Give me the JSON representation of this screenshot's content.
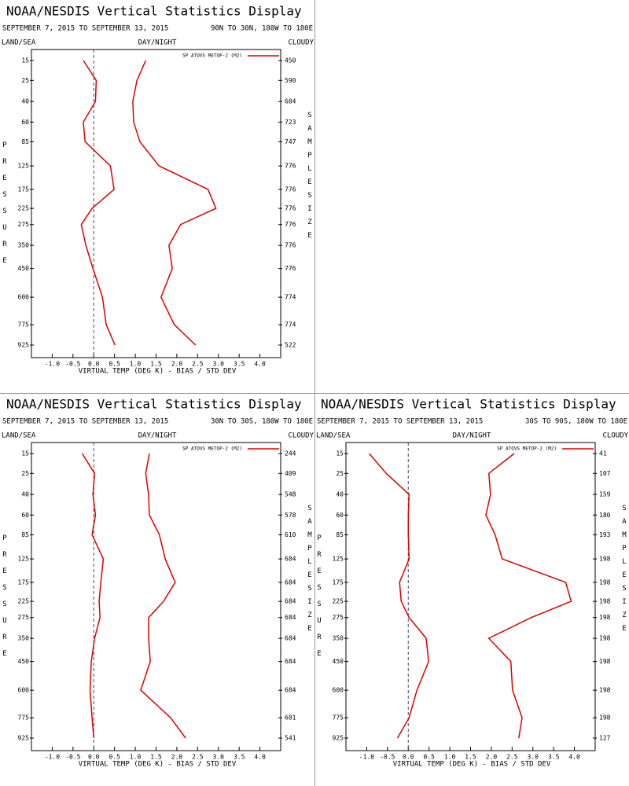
{
  "chart_data": [
    {
      "type": "line",
      "title": "NOAA/NESDIS Vertical Statistics Display",
      "subtitle": "SEPTEMBER 7, 2015 TO SEPTEMBER 13, 2015",
      "region": "90N TO 30N, 180W TO 180E",
      "land_sea": "LAND/SEA",
      "day_night": "DAY/NIGHT",
      "cloud": "CLOUDY",
      "ylabel": "PRESSURE",
      "y2label": "SAMPLE SIZE",
      "xlabel": "VIRTUAL TEMP (DEG K) - BIAS / STD DEV",
      "legend": "SP ATOVS METOP-2 (M2)",
      "color": "#dd0000",
      "y": [
        15,
        25,
        40,
        60,
        85,
        125,
        175,
        225,
        275,
        350,
        450,
        600,
        775,
        925
      ],
      "yscale": "power",
      "yexponent": 0.286,
      "ylim": [
        15,
        925
      ],
      "yticks": [
        15,
        25,
        40,
        60,
        85,
        125,
        175,
        225,
        275,
        350,
        450,
        600,
        775,
        925
      ],
      "xlim": [
        -1.5,
        4.5
      ],
      "xticks": [
        {
          "value": -1,
          "label": "-1.0"
        },
        {
          "value": -0.5,
          "label": "-0.5"
        },
        {
          "value": 0,
          "label": "0.0"
        },
        {
          "value": 0.5,
          "label": "0.5"
        },
        {
          "value": 1,
          "label": "1.0"
        },
        {
          "value": 1.5,
          "label": "1.5"
        },
        {
          "value": 2,
          "label": "2.0"
        },
        {
          "value": 2.5,
          "label": "2.5"
        },
        {
          "value": 3,
          "label": "3.0"
        },
        {
          "value": 3.5,
          "label": "3.5"
        },
        {
          "value": 4,
          "label": "4.0"
        }
      ],
      "vline": 0,
      "sample_size": [
        450,
        590,
        684,
        723,
        747,
        776,
        776,
        776,
        776,
        776,
        776,
        774,
        774,
        522
      ],
      "series": [
        {
          "values": [
            -0.25,
            0.06,
            0.04,
            -0.25,
            -0.21,
            0.4,
            0.49,
            -0.04,
            -0.3,
            -0.19,
            -0.02,
            0.21,
            0.3,
            0.51
          ]
        },
        {
          "values": [
            1.25,
            1.04,
            0.94,
            0.96,
            1.11,
            1.57,
            2.75,
            2.94,
            2.09,
            1.81,
            1.89,
            1.62,
            1.94,
            2.45
          ]
        }
      ]
    },
    {
      "type": "line",
      "title": "NOAA/NESDIS Vertical Statistics Display",
      "subtitle": "SEPTEMBER 7, 2015 TO SEPTEMBER 13, 2015",
      "region": "30N TO 30S, 180W TO 180E",
      "land_sea": "LAND/SEA",
      "day_night": "DAY/NIGHT",
      "cloud": "CLOUDY",
      "ylabel": "PRESSURE",
      "y2label": "SAMPLE SIZE",
      "xlabel": "VIRTUAL TEMP (DEG K) - BIAS / STD DEV",
      "legend": "SP ATOVS METOP-2 (M2)",
      "color": "#dd0000",
      "y": [
        15,
        25,
        40,
        60,
        85,
        125,
        175,
        225,
        275,
        350,
        450,
        600,
        775,
        925
      ],
      "yscale": "power",
      "yexponent": 0.286,
      "ylim": [
        15,
        925
      ],
      "yticks": [
        15,
        25,
        40,
        60,
        85,
        125,
        175,
        225,
        275,
        350,
        450,
        600,
        775,
        925
      ],
      "xlim": [
        -1.5,
        4.5
      ],
      "xticks": [
        {
          "value": -1,
          "label": "-1.0"
        },
        {
          "value": -0.5,
          "label": "-0.5"
        },
        {
          "value": 0,
          "label": "0.0"
        },
        {
          "value": 0.5,
          "label": "0.5"
        },
        {
          "value": 1,
          "label": "1.0"
        },
        {
          "value": 1.5,
          "label": "1.5"
        },
        {
          "value": 2,
          "label": "2.0"
        },
        {
          "value": 2.5,
          "label": "2.5"
        },
        {
          "value": 3,
          "label": "3.0"
        },
        {
          "value": 3.5,
          "label": "3.5"
        },
        {
          "value": 4,
          "label": "4.0"
        }
      ],
      "vline": 0,
      "sample_size": [
        244,
        409,
        548,
        578,
        610,
        684,
        684,
        684,
        684,
        684,
        684,
        684,
        681,
        541
      ],
      "series": [
        {
          "values": [
            -0.28,
            0.02,
            -0.02,
            0.04,
            -0.04,
            0.23,
            0.17,
            0.13,
            0.15,
            0.02,
            -0.06,
            -0.09,
            -0.04,
            0
          ]
        },
        {
          "values": [
            1.34,
            1.25,
            1.32,
            1.34,
            1.58,
            1.72,
            1.96,
            1.68,
            1.32,
            1.32,
            1.36,
            1.13,
            1.85,
            2.21
          ]
        }
      ]
    },
    {
      "type": "line",
      "title": "NOAA/NESDIS Vertical Statistics Display",
      "subtitle": "SEPTEMBER 7, 2015 TO SEPTEMBER 13, 2015",
      "region": "30S TO 90S, 180W TO 180E",
      "land_sea": "LAND/SEA",
      "day_night": "DAY/NIGHT",
      "cloud": "CLOUDY",
      "ylabel": "PRESSURE",
      "y2label": "SAMPLE SIZE",
      "xlabel": "VIRTUAL TEMP (DEG K) - BIAS / STD DEV",
      "legend": "SP ATOVS METOP-2 (M2)",
      "color": "#dd0000",
      "y": [
        15,
        25,
        40,
        60,
        85,
        125,
        175,
        225,
        275,
        350,
        450,
        600,
        775,
        925
      ],
      "yscale": "power",
      "yexponent": 0.286,
      "ylim": [
        15,
        925
      ],
      "yticks": [
        15,
        25,
        40,
        60,
        85,
        125,
        175,
        225,
        275,
        350,
        450,
        600,
        775,
        925
      ],
      "xlim": [
        -1.5,
        4.5
      ],
      "xticks": [
        {
          "value": -1,
          "label": "-1.0"
        },
        {
          "value": -0.5,
          "label": "-0.5"
        },
        {
          "value": 0,
          "label": "0.0"
        },
        {
          "value": 0.5,
          "label": "0.5"
        },
        {
          "value": 1,
          "label": "1.0"
        },
        {
          "value": 1.5,
          "label": "1.5"
        },
        {
          "value": 2,
          "label": "2.0"
        },
        {
          "value": 2.5,
          "label": "2.5"
        },
        {
          "value": 3,
          "label": "3.0"
        },
        {
          "value": 3.5,
          "label": "3.5"
        },
        {
          "value": 4,
          "label": "4.0"
        }
      ],
      "vline": 0,
      "sample_size": [
        41,
        107,
        159,
        180,
        193,
        198,
        198,
        198,
        198,
        198,
        198,
        198,
        198,
        127
      ],
      "series": [
        {
          "values": [
            -0.94,
            -0.53,
            0.02,
            0,
            0,
            0.02,
            -0.21,
            -0.17,
            0.02,
            0.43,
            0.49,
            0.21,
            0.02,
            -0.26
          ]
        },
        {
          "values": [
            2.55,
            1.94,
            1.98,
            1.87,
            2.09,
            2.26,
            3.79,
            3.92,
            2.96,
            1.94,
            2.47,
            2.51,
            2.74,
            2.66
          ]
        }
      ]
    }
  ]
}
